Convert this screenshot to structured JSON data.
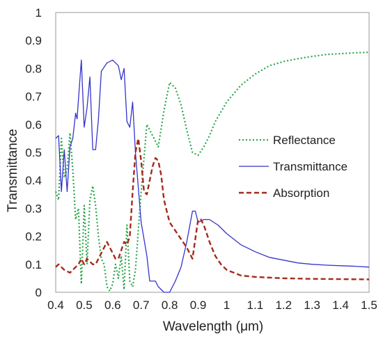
{
  "chart_data": {
    "type": "line",
    "title": "",
    "xlabel": "Wavelength (μm)",
    "ylabel": "Transmittance",
    "xlim": [
      0.4,
      1.5
    ],
    "ylim": [
      0,
      1
    ],
    "x_ticks": [
      "0.4",
      "0.5",
      "0.6",
      "0.7",
      "0.8",
      "0.9",
      "1",
      "1.1",
      "1.2",
      "1.3",
      "1.4",
      "1.5"
    ],
    "y_ticks": [
      "0",
      "0.1",
      "0.2",
      "0.3",
      "0.4",
      "0.5",
      "0.6",
      "0.7",
      "0.8",
      "0.9",
      "1"
    ],
    "grid": false,
    "legend_position": "center-right",
    "series": [
      {
        "name": "Reflectance",
        "color": "#2aa64a",
        "style": "dotted",
        "points": [
          [
            0.4,
            0.36
          ],
          [
            0.41,
            0.33
          ],
          [
            0.42,
            0.55
          ],
          [
            0.43,
            0.41
          ],
          [
            0.44,
            0.44
          ],
          [
            0.45,
            0.57
          ],
          [
            0.46,
            0.44
          ],
          [
            0.47,
            0.26
          ],
          [
            0.48,
            0.3
          ],
          [
            0.49,
            0.03
          ],
          [
            0.5,
            0.31
          ],
          [
            0.51,
            0.1
          ],
          [
            0.52,
            0.33
          ],
          [
            0.53,
            0.38
          ],
          [
            0.54,
            0.31
          ],
          [
            0.55,
            0.2
          ],
          [
            0.56,
            0.12
          ],
          [
            0.57,
            0.1
          ],
          [
            0.58,
            0.02
          ],
          [
            0.59,
            0.005
          ],
          [
            0.6,
            0.03
          ],
          [
            0.61,
            0.1
          ],
          [
            0.62,
            0.05
          ],
          [
            0.63,
            0.13
          ],
          [
            0.64,
            0.01
          ],
          [
            0.65,
            0.24
          ],
          [
            0.66,
            0.04
          ],
          [
            0.67,
            0.02
          ],
          [
            0.68,
            0.08
          ],
          [
            0.7,
            0.36
          ],
          [
            0.72,
            0.6
          ],
          [
            0.74,
            0.56
          ],
          [
            0.76,
            0.52
          ],
          [
            0.78,
            0.65
          ],
          [
            0.8,
            0.75
          ],
          [
            0.82,
            0.73
          ],
          [
            0.84,
            0.67
          ],
          [
            0.86,
            0.58
          ],
          [
            0.88,
            0.5
          ],
          [
            0.9,
            0.49
          ],
          [
            0.92,
            0.52
          ],
          [
            0.94,
            0.56
          ],
          [
            0.96,
            0.61
          ],
          [
            1.0,
            0.68
          ],
          [
            1.05,
            0.74
          ],
          [
            1.1,
            0.78
          ],
          [
            1.15,
            0.81
          ],
          [
            1.2,
            0.825
          ],
          [
            1.25,
            0.835
          ],
          [
            1.3,
            0.843
          ],
          [
            1.35,
            0.85
          ],
          [
            1.4,
            0.853
          ],
          [
            1.45,
            0.856
          ],
          [
            1.5,
            0.858
          ]
        ]
      },
      {
        "name": "Transmittance",
        "color": "#3333cc",
        "style": "solid",
        "points": [
          [
            0.4,
            0.55
          ],
          [
            0.41,
            0.56
          ],
          [
            0.42,
            0.36
          ],
          [
            0.43,
            0.51
          ],
          [
            0.44,
            0.36
          ],
          [
            0.45,
            0.52
          ],
          [
            0.46,
            0.55
          ],
          [
            0.47,
            0.64
          ],
          [
            0.475,
            0.62
          ],
          [
            0.48,
            0.69
          ],
          [
            0.49,
            0.83
          ],
          [
            0.5,
            0.59
          ],
          [
            0.51,
            0.66
          ],
          [
            0.52,
            0.77
          ],
          [
            0.53,
            0.51
          ],
          [
            0.54,
            0.51
          ],
          [
            0.55,
            0.62
          ],
          [
            0.56,
            0.79
          ],
          [
            0.58,
            0.82
          ],
          [
            0.6,
            0.83
          ],
          [
            0.62,
            0.81
          ],
          [
            0.63,
            0.76
          ],
          [
            0.64,
            0.8
          ],
          [
            0.65,
            0.61
          ],
          [
            0.66,
            0.59
          ],
          [
            0.67,
            0.68
          ],
          [
            0.68,
            0.5
          ],
          [
            0.7,
            0.25
          ],
          [
            0.72,
            0.13
          ],
          [
            0.73,
            0.04
          ],
          [
            0.75,
            0.04
          ],
          [
            0.76,
            0.02
          ],
          [
            0.78,
            0.0
          ],
          [
            0.8,
            0.0
          ],
          [
            0.82,
            0.04
          ],
          [
            0.84,
            0.09
          ],
          [
            0.86,
            0.18
          ],
          [
            0.88,
            0.29
          ],
          [
            0.89,
            0.29
          ],
          [
            0.9,
            0.25
          ],
          [
            0.92,
            0.26
          ],
          [
            0.94,
            0.26
          ],
          [
            0.97,
            0.24
          ],
          [
            1.0,
            0.21
          ],
          [
            1.05,
            0.17
          ],
          [
            1.1,
            0.145
          ],
          [
            1.15,
            0.125
          ],
          [
            1.2,
            0.115
          ],
          [
            1.25,
            0.105
          ],
          [
            1.3,
            0.1
          ],
          [
            1.35,
            0.097
          ],
          [
            1.4,
            0.095
          ],
          [
            1.45,
            0.093
          ],
          [
            1.5,
            0.09
          ]
        ]
      },
      {
        "name": "Absorption",
        "color": "#a52a1a",
        "style": "dashed",
        "points": [
          [
            0.4,
            0.09
          ],
          [
            0.41,
            0.1
          ],
          [
            0.43,
            0.08
          ],
          [
            0.45,
            0.07
          ],
          [
            0.47,
            0.09
          ],
          [
            0.48,
            0.1
          ],
          [
            0.49,
            0.12
          ],
          [
            0.5,
            0.1
          ],
          [
            0.51,
            0.12
          ],
          [
            0.52,
            0.11
          ],
          [
            0.53,
            0.1
          ],
          [
            0.54,
            0.1
          ],
          [
            0.55,
            0.12
          ],
          [
            0.56,
            0.14
          ],
          [
            0.58,
            0.18
          ],
          [
            0.59,
            0.16
          ],
          [
            0.6,
            0.14
          ],
          [
            0.61,
            0.12
          ],
          [
            0.62,
            0.12
          ],
          [
            0.63,
            0.15
          ],
          [
            0.64,
            0.18
          ],
          [
            0.65,
            0.17
          ],
          [
            0.66,
            0.2
          ],
          [
            0.67,
            0.36
          ],
          [
            0.68,
            0.5
          ],
          [
            0.69,
            0.55
          ],
          [
            0.7,
            0.47
          ],
          [
            0.71,
            0.36
          ],
          [
            0.72,
            0.35
          ],
          [
            0.73,
            0.4
          ],
          [
            0.74,
            0.45
          ],
          [
            0.75,
            0.48
          ],
          [
            0.76,
            0.47
          ],
          [
            0.77,
            0.42
          ],
          [
            0.78,
            0.33
          ],
          [
            0.79,
            0.29
          ],
          [
            0.8,
            0.25
          ],
          [
            0.82,
            0.22
          ],
          [
            0.84,
            0.19
          ],
          [
            0.86,
            0.16
          ],
          [
            0.88,
            0.12
          ],
          [
            0.9,
            0.26
          ],
          [
            0.91,
            0.26
          ],
          [
            0.92,
            0.24
          ],
          [
            0.94,
            0.18
          ],
          [
            0.96,
            0.13
          ],
          [
            0.98,
            0.1
          ],
          [
            1.0,
            0.08
          ],
          [
            1.05,
            0.06
          ],
          [
            1.1,
            0.055
          ],
          [
            1.2,
            0.05
          ],
          [
            1.3,
            0.048
          ],
          [
            1.4,
            0.047
          ],
          [
            1.5,
            0.046
          ]
        ]
      }
    ]
  }
}
